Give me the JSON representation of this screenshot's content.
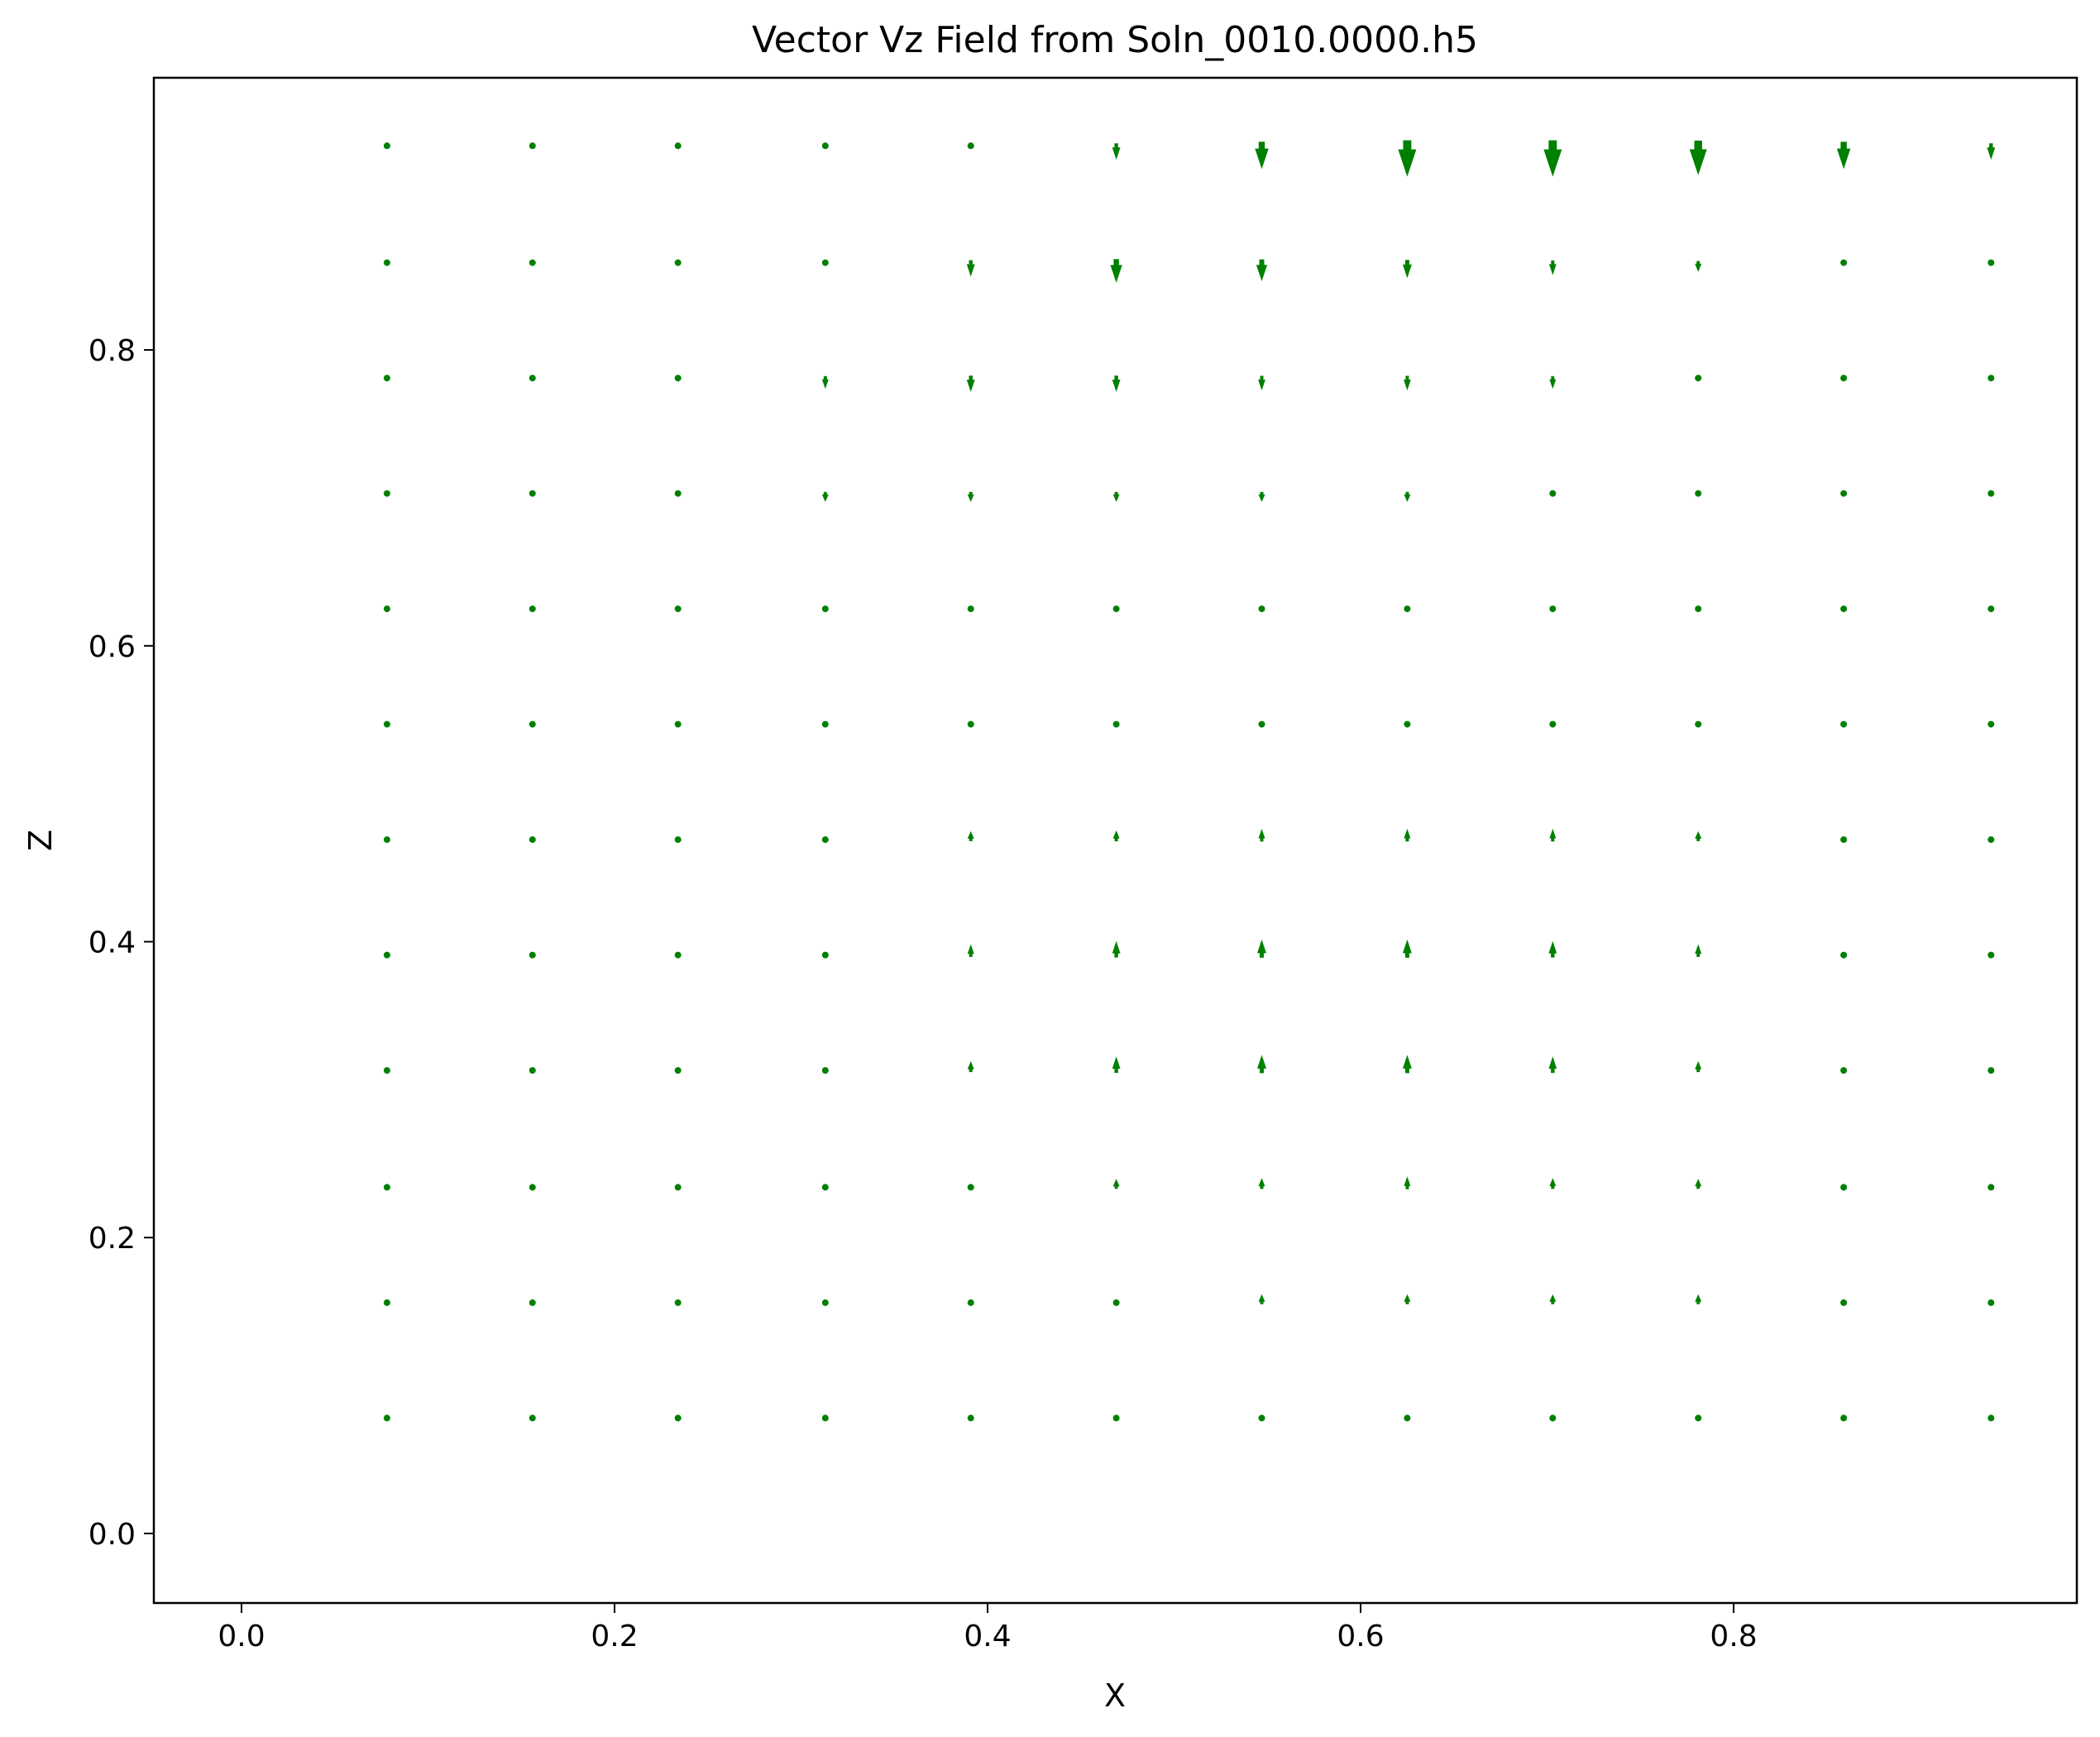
{
  "chart_data": {
    "type": "quiver",
    "title": "Vector Vz Field from Soln_0010.0000.h5",
    "xlabel": "X",
    "ylabel": "Z",
    "xlim": [
      -0.047,
      0.984
    ],
    "ylim": [
      -0.047,
      0.984
    ],
    "xticks": [
      0.0,
      0.2,
      0.4,
      0.6,
      0.8
    ],
    "yticks": [
      0.0,
      0.2,
      0.4,
      0.6,
      0.8
    ],
    "xtick_labels": [
      "0.0",
      "0.2",
      "0.4",
      "0.6",
      "0.8"
    ],
    "ytick_labels": [
      "0.0",
      "0.2",
      "0.4",
      "0.6",
      "0.8"
    ],
    "grid": false,
    "legend": "none",
    "color": "#008000",
    "x": [
      0.078,
      0.156,
      0.234,
      0.313,
      0.391,
      0.469,
      0.547,
      0.625,
      0.703,
      0.781,
      0.859,
      0.938
    ],
    "z": [
      0.938,
      0.859,
      0.781,
      0.703,
      0.625,
      0.547,
      0.469,
      0.391,
      0.313,
      0.234,
      0.156,
      0.078
    ],
    "vz_relative": [
      [
        0,
        0,
        0,
        0,
        0,
        -0.45,
        -0.75,
        -1.0,
        -1.0,
        -0.95,
        -0.75,
        -0.45
      ],
      [
        0,
        0,
        0,
        0,
        -0.45,
        -0.65,
        -0.6,
        -0.5,
        -0.4,
        -0.3,
        0,
        0
      ],
      [
        0,
        0,
        0,
        -0.35,
        -0.45,
        -0.45,
        -0.4,
        -0.4,
        -0.35,
        0,
        0,
        0
      ],
      [
        0,
        0,
        0,
        -0.25,
        -0.25,
        -0.25,
        -0.25,
        -0.25,
        0,
        0,
        0,
        0
      ],
      [
        0,
        0,
        0,
        0,
        0,
        0,
        0,
        0,
        0,
        0,
        0,
        0
      ],
      [
        0,
        0,
        0,
        0,
        0,
        0,
        0,
        0,
        0,
        0,
        0,
        0
      ],
      [
        0,
        0,
        0,
        0,
        0.25,
        0.3,
        0.35,
        0.35,
        0.35,
        0.25,
        0,
        0
      ],
      [
        0,
        0,
        0,
        0,
        0.35,
        0.45,
        0.5,
        0.5,
        0.45,
        0.35,
        0,
        0
      ],
      [
        0,
        0,
        0,
        0,
        0.3,
        0.45,
        0.5,
        0.5,
        0.45,
        0.3,
        0,
        0
      ],
      [
        0,
        0,
        0,
        0,
        0,
        0.25,
        0.3,
        0.35,
        0.3,
        0.25,
        0,
        0
      ],
      [
        0,
        0,
        0,
        0,
        0,
        0,
        0.2,
        0.25,
        0.25,
        0.2,
        0,
        0
      ],
      [
        0,
        0,
        0,
        0,
        0,
        0,
        0,
        0,
        0,
        0,
        0,
        0
      ]
    ]
  }
}
